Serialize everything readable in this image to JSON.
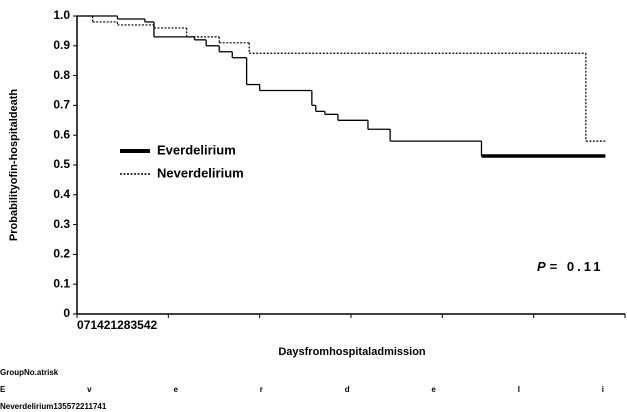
{
  "chart_data": {
    "type": "step",
    "y_label": "Probabilityofin-hospitaldeath",
    "x_label": "Daysfromhospitaladmission",
    "xlim": [
      0,
      42
    ],
    "ylim": [
      0,
      1
    ],
    "xticks": [
      0,
      7,
      14,
      21,
      28,
      35,
      42
    ],
    "yticks": [
      0,
      0.1,
      0.2,
      0.3,
      0.4,
      0.5,
      0.6,
      0.7,
      0.8,
      0.9,
      {
        "value": 1,
        "label": "1.0"
      }
    ],
    "series": [
      {
        "name": "Everdelirium",
        "color": "#000000",
        "style": "solid",
        "x": [
          0,
          3.1,
          5.2,
          5.9,
          9.0,
          9.9,
          10.9,
          11.9,
          13.0,
          14.0,
          18.0,
          18.3,
          19.0,
          20.0,
          22.3,
          24.0,
          31.0,
          40.5
        ],
        "values": [
          1,
          0.99,
          0.98,
          0.93,
          0.92,
          0.9,
          0.88,
          0.86,
          0.77,
          0.75,
          0.7,
          0.68,
          0.67,
          0.65,
          0.62,
          0.58,
          0.53,
          0.53
        ]
      },
      {
        "name": "Neverdelirium",
        "color": "#000000",
        "style": "dotted",
        "x": [
          0,
          1.2,
          3.1,
          5.9,
          8.4,
          10.9,
          13.2,
          39.0,
          40.5
        ],
        "values": [
          1,
          0.98,
          0.97,
          0.96,
          0.93,
          0.91,
          0.875,
          0.58,
          0.58
        ]
      }
    ],
    "annotation": {
      "italic": "P",
      "text": "= 0.11"
    },
    "risk_table": {
      "header": "GroupNo.atrisk",
      "row1": "Everdeli",
      "row2": "Neverdelirium135572211741"
    }
  }
}
